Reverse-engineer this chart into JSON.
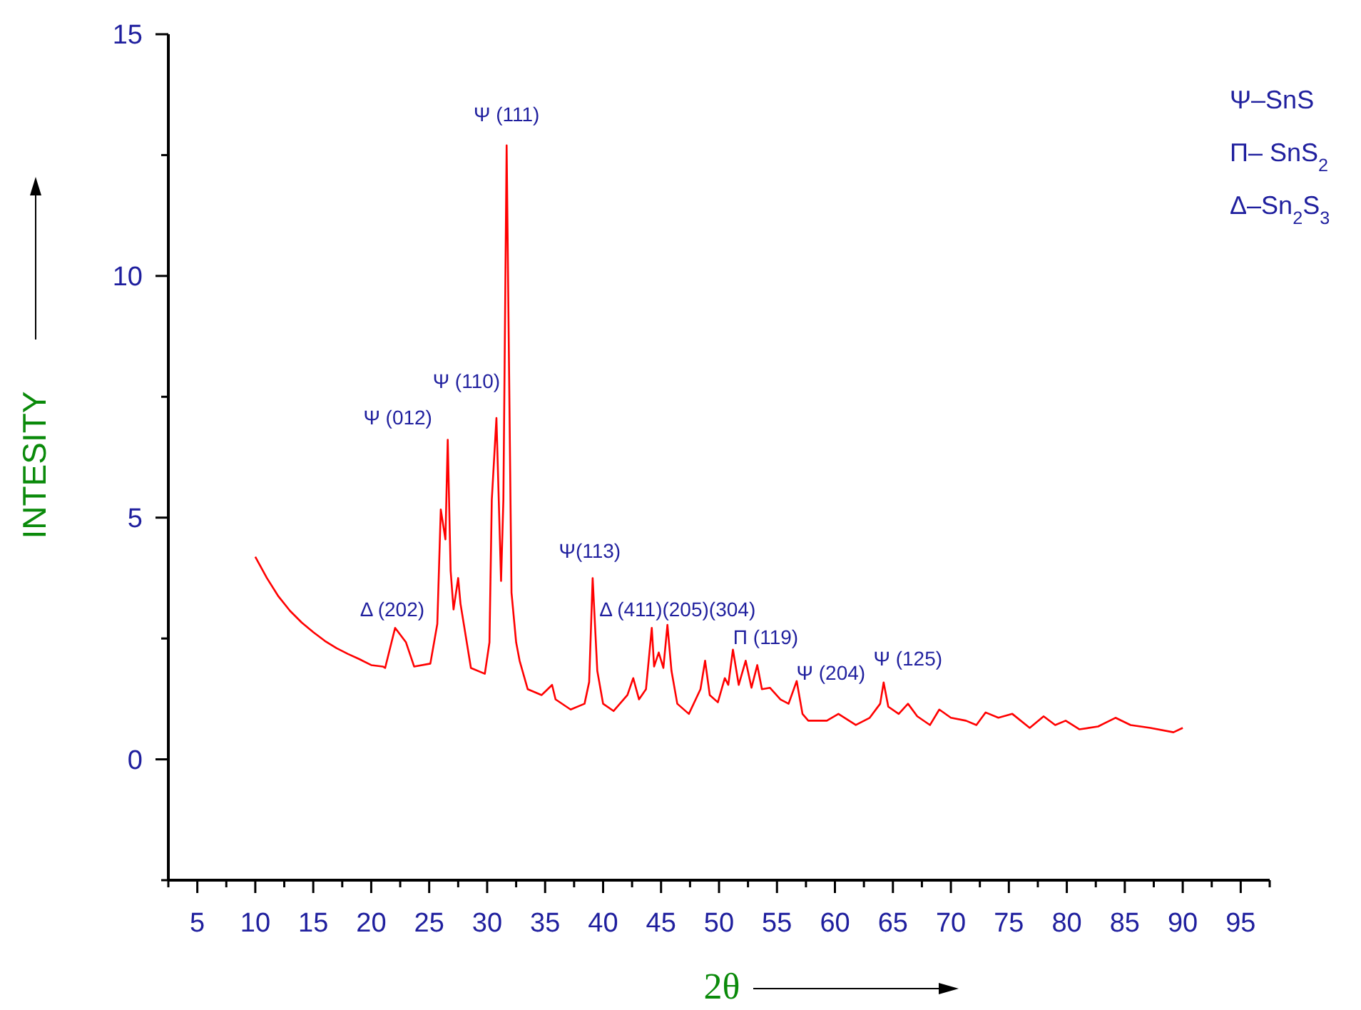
{
  "chart_data": {
    "type": "line",
    "xlabel": "2θ",
    "ylabel": "INTESITY",
    "xlim": [
      2.5,
      97.5
    ],
    "ylim": [
      -2.5,
      15
    ],
    "xticks": [
      {
        "value": 2.5,
        "label": null
      },
      5,
      {
        "value": 7.5,
        "label": null
      },
      10,
      {
        "value": 12.5,
        "label": null
      },
      15,
      {
        "value": 17.5,
        "label": null
      },
      20,
      {
        "value": 22.5,
        "label": null
      },
      25,
      {
        "value": 27.5,
        "label": null
      },
      30,
      {
        "value": 32.5,
        "label": null
      },
      35,
      {
        "value": 37.5,
        "label": null
      },
      40,
      {
        "value": 42.5,
        "label": null
      },
      45,
      {
        "value": 47.5,
        "label": null
      },
      50,
      {
        "value": 52.5,
        "label": null
      },
      55,
      {
        "value": 57.5,
        "label": null
      },
      60,
      {
        "value": 62.5,
        "label": null
      },
      65,
      {
        "value": 67.5,
        "label": null
      },
      70,
      {
        "value": 72.5,
        "label": null
      },
      75,
      {
        "value": 77.5,
        "label": null
      },
      80,
      {
        "value": 82.5,
        "label": null
      },
      85,
      {
        "value": 87.5,
        "label": null
      },
      90,
      {
        "value": 92.5,
        "label": null
      },
      95,
      {
        "value": 97.5,
        "label": null
      }
    ],
    "yticks": [
      {
        "value": -2.5,
        "label": null
      },
      0,
      {
        "value": 2.5,
        "label": null
      },
      5,
      {
        "value": 7.5,
        "label": null
      },
      10,
      {
        "value": 12.5,
        "label": null
      },
      15
    ],
    "grid": false,
    "marker": "none",
    "line_style": "solid",
    "series": [
      {
        "color": "#ff0000",
        "x": [
          10,
          11,
          12,
          13,
          14,
          15,
          16,
          17,
          18,
          19,
          20,
          21,
          21.2,
          22.06,
          23.0,
          23.7,
          25.1,
          25.7,
          26.0,
          26.4,
          26.6,
          26.85,
          27.1,
          27.5,
          27.7,
          28.6,
          29.8,
          30.2,
          30.4,
          30.8,
          31.2,
          31.4,
          31.68,
          32.1,
          32.5,
          32.8,
          33.5,
          34.7,
          35.6,
          35.9,
          37.2,
          38.4,
          38.8,
          39.1,
          39.5,
          40.0,
          40.9,
          42.1,
          42.6,
          43.1,
          43.7,
          44.2,
          44.4,
          44.8,
          45.2,
          45.55,
          45.9,
          46.4,
          47.4,
          48.4,
          48.8,
          49.2,
          49.9,
          50.5,
          50.8,
          51.2,
          51.7,
          52.3,
          52.8,
          53.3,
          53.7,
          54.4,
          55.3,
          56.0,
          56.7,
          57.2,
          57.7,
          59.3,
          60.3,
          61.8,
          63.0,
          63.9,
          64.2,
          64.6,
          65.5,
          66.3,
          67.1,
          68.2,
          69.0,
          70.0,
          71.3,
          72.2,
          73.0,
          74.1,
          75.3,
          76.8,
          78.0,
          79.0,
          79.9,
          81.1,
          82.7,
          84.2,
          85.5,
          87.2,
          89.2,
          90.0
        ],
        "values": [
          4.19,
          3.75,
          3.37,
          3.07,
          2.83,
          2.63,
          2.45,
          2.3,
          2.18,
          2.07,
          1.95,
          1.92,
          1.89,
          2.72,
          2.42,
          1.92,
          1.98,
          2.8,
          5.17,
          4.55,
          6.61,
          3.9,
          3.1,
          3.75,
          3.22,
          1.89,
          1.77,
          2.42,
          5.37,
          7.06,
          3.69,
          5.37,
          12.7,
          3.45,
          2.42,
          2.04,
          1.45,
          1.33,
          1.54,
          1.24,
          1.03,
          1.15,
          1.6,
          3.75,
          1.83,
          1.15,
          1.0,
          1.33,
          1.68,
          1.24,
          1.45,
          2.72,
          1.92,
          2.21,
          1.89,
          2.78,
          1.83,
          1.15,
          0.94,
          1.45,
          2.04,
          1.33,
          1.18,
          1.68,
          1.54,
          2.27,
          1.54,
          2.04,
          1.48,
          1.95,
          1.45,
          1.48,
          1.24,
          1.15,
          1.62,
          0.94,
          0.8,
          0.8,
          0.94,
          0.71,
          0.86,
          1.15,
          1.59,
          1.09,
          0.94,
          1.15,
          0.89,
          0.71,
          1.03,
          0.86,
          0.8,
          0.71,
          0.97,
          0.86,
          0.94,
          0.65,
          0.89,
          0.71,
          0.8,
          0.62,
          0.68,
          0.86,
          0.71,
          0.65,
          0.56,
          0.65
        ]
      }
    ],
    "annotations": [
      {
        "text": "Ψ (111)",
        "x": 31.68,
        "y": 12.7
      },
      {
        "text": "Ψ (110)",
        "x": 30.8,
        "y": 7.06
      },
      {
        "text": "Ψ (012)",
        "x": 26.6,
        "y": 6.61
      },
      {
        "text": "Δ (202)",
        "x": 22.06,
        "y": 2.72
      },
      {
        "text": "Ψ(113)",
        "x": 39.1,
        "y": 3.75
      },
      {
        "text": "Δ (411)(205)(304)",
        "x": 44.2,
        "y": 2.72
      },
      {
        "text": "Π (119)",
        "x": 51.2,
        "y": 2.27
      },
      {
        "text": "Ψ (204)",
        "x": 56.7,
        "y": 1.62
      },
      {
        "text": "Ψ (125)",
        "x": 64.2,
        "y": 1.59
      },
      "Ψ–SnS",
      "Π– SnS$_{2}$",
      "Δ–Sn$_{2}$S$_{3}$"
    ]
  }
}
